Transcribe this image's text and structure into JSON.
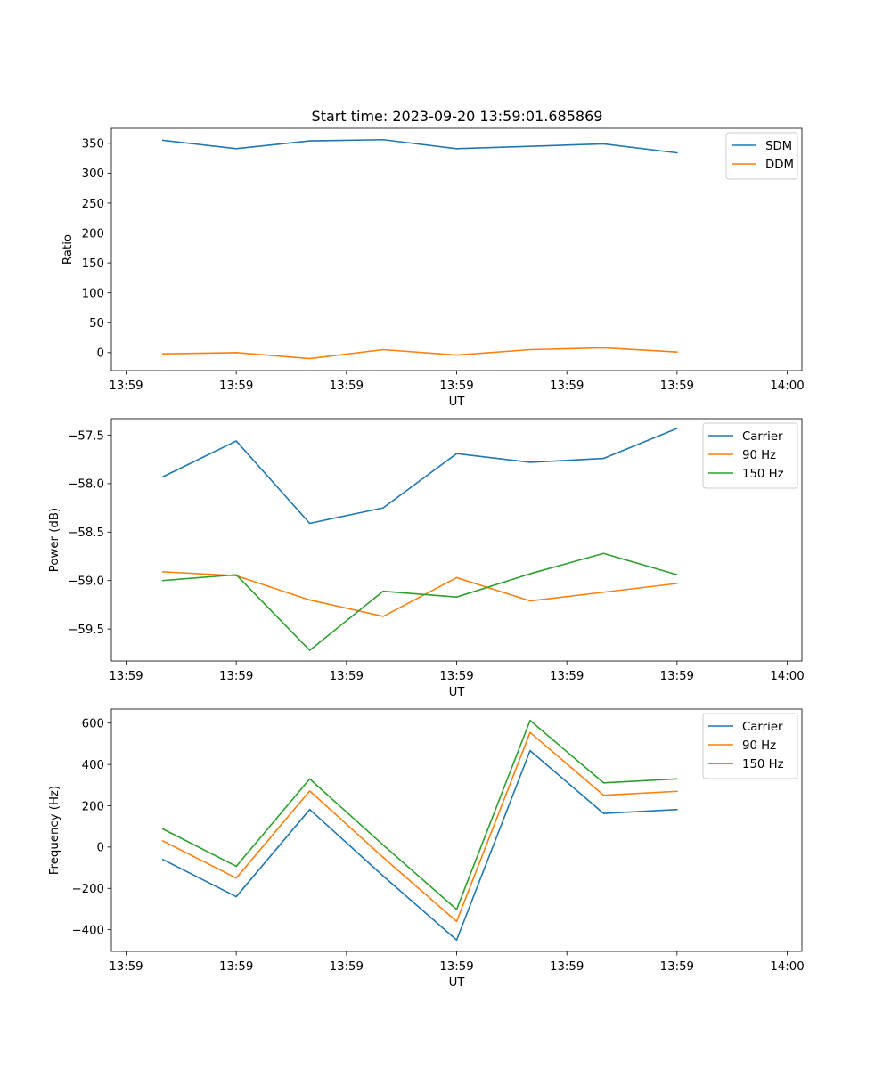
{
  "figure_title": "Start time: 2023-09-20 13:59:01.685869",
  "chart_data": [
    {
      "type": "line",
      "title": "Start time: 2023-09-20 13:59:01.685869",
      "xlabel": "UT",
      "ylabel": "Ratio",
      "x": [
        1.5,
        2.5,
        3.5,
        4.5,
        5.5,
        6.5,
        7.5,
        8.5
      ],
      "xlim": [
        0.8,
        10.2
      ],
      "xticks": [
        1,
        2.5,
        4,
        5.5,
        7,
        8.5,
        10
      ],
      "xtick_labels": [
        "13:59",
        "13:59",
        "13:59",
        "13:59",
        "13:59",
        "13:59",
        "14:00"
      ],
      "ylim": [
        -30,
        375
      ],
      "yticks": [
        0,
        50,
        100,
        150,
        200,
        250,
        300,
        350
      ],
      "ytick_labels": [
        "0",
        "50",
        "100",
        "150",
        "200",
        "250",
        "300",
        "350"
      ],
      "legend_position": "top-right",
      "series": [
        {
          "name": "SDM",
          "color": "#1f77b4",
          "values": [
            355,
            341,
            354,
            356,
            341,
            345,
            349,
            334
          ]
        },
        {
          "name": "DDM",
          "color": "#ff7f0e",
          "values": [
            -2,
            0,
            -10,
            5,
            -4,
            5,
            8,
            1
          ]
        }
      ]
    },
    {
      "type": "line",
      "title": "",
      "xlabel": "UT",
      "ylabel": "Power (dB)",
      "x": [
        1.5,
        2.5,
        3.5,
        4.5,
        5.5,
        6.5,
        7.5,
        8.5
      ],
      "xlim": [
        0.8,
        10.2
      ],
      "xticks": [
        1,
        2.5,
        4,
        5.5,
        7,
        8.5,
        10
      ],
      "xtick_labels": [
        "13:59",
        "13:59",
        "13:59",
        "13:59",
        "13:59",
        "13:59",
        "14:00"
      ],
      "ylim": [
        -59.83,
        -57.33
      ],
      "yticks": [
        -59.5,
        -59.0,
        -58.5,
        -58.0,
        -57.5
      ],
      "ytick_labels": [
        "−59.5",
        "−59.0",
        "−58.5",
        "−58.0",
        "−57.5"
      ],
      "legend_position": "top-right",
      "series": [
        {
          "name": "Carrier",
          "color": "#1f77b4",
          "values": [
            -57.93,
            -57.56,
            -58.41,
            -58.25,
            -57.69,
            -57.78,
            -57.74,
            -57.43
          ]
        },
        {
          "name": "90 Hz",
          "color": "#ff7f0e",
          "values": [
            -58.91,
            -58.95,
            -59.2,
            -59.37,
            -58.97,
            -59.21,
            -59.12,
            -59.03
          ]
        },
        {
          "name": "150 Hz",
          "color": "#2ca02c",
          "values": [
            -59.0,
            -58.94,
            -59.72,
            -59.11,
            -59.17,
            -58.93,
            -58.72,
            -58.94
          ]
        }
      ]
    },
    {
      "type": "line",
      "title": "",
      "xlabel": "UT",
      "ylabel": "Frequency (Hz)",
      "x": [
        1.5,
        2.5,
        3.5,
        4.5,
        5.5,
        6.5,
        7.5,
        8.5
      ],
      "xlim": [
        0.8,
        10.2
      ],
      "xticks": [
        1,
        2.5,
        4,
        5.5,
        7,
        8.5,
        10
      ],
      "xtick_labels": [
        "13:59",
        "13:59",
        "13:59",
        "13:59",
        "13:59",
        "13:59",
        "14:00"
      ],
      "ylim": [
        -505,
        668
      ],
      "yticks": [
        -400,
        -200,
        0,
        200,
        400,
        600
      ],
      "ytick_labels": [
        "−400",
        "−200",
        "0",
        "200",
        "400",
        "600"
      ],
      "legend_position": "top-right",
      "series": [
        {
          "name": "Carrier",
          "color": "#1f77b4",
          "values": [
            -60,
            -240,
            182,
            -140,
            -450,
            467,
            163,
            182
          ]
        },
        {
          "name": "90 Hz",
          "color": "#ff7f0e",
          "values": [
            30,
            -150,
            272,
            -50,
            -360,
            555,
            251,
            270
          ]
        },
        {
          "name": "150 Hz",
          "color": "#2ca02c",
          "values": [
            88,
            -93,
            330,
            10,
            -302,
            613,
            311,
            330
          ]
        }
      ]
    }
  ]
}
